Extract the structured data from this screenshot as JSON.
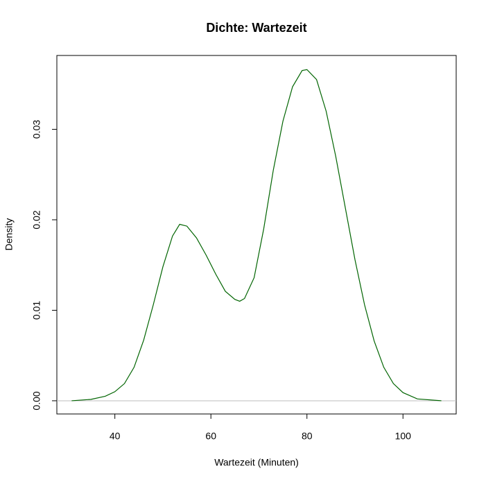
{
  "chart_data": {
    "type": "line",
    "title": "Dichte: Wartezeit",
    "xlabel": "Wartezeit (Minuten)",
    "ylabel": "Density",
    "x": [
      31,
      35,
      38,
      40,
      42,
      44,
      46,
      48,
      50,
      52,
      53.5,
      55,
      57,
      59,
      61,
      63,
      65,
      66,
      67,
      69,
      71,
      73,
      75,
      77,
      79,
      80,
      82,
      84,
      86,
      88,
      90,
      92,
      94,
      96,
      98,
      100,
      103,
      108
    ],
    "series": [
      {
        "name": "Dichte",
        "color": "#006400",
        "values": [
          0,
          0.00015,
          0.0005,
          0.001,
          0.0019,
          0.0037,
          0.0067,
          0.0106,
          0.0148,
          0.0182,
          0.0195,
          0.0193,
          0.018,
          0.0161,
          0.014,
          0.0121,
          0.0112,
          0.011,
          0.0113,
          0.0136,
          0.019,
          0.0255,
          0.0309,
          0.0347,
          0.0365,
          0.0366,
          0.0355,
          0.032,
          0.027,
          0.0213,
          0.0156,
          0.0106,
          0.0066,
          0.0037,
          0.0019,
          0.0009,
          0.0002,
          0
        ]
      }
    ],
    "xlim": [
      27.92,
      111.08
    ],
    "ylim": [
      -0.00146,
      0.03816
    ],
    "xticks": [
      40,
      60,
      80,
      100
    ],
    "yticks": [
      {
        "value": 0,
        "label": "0.00"
      },
      0.01,
      0.02,
      0.03
    ],
    "zero_line": true,
    "zero_line_color": "#bebebe"
  }
}
